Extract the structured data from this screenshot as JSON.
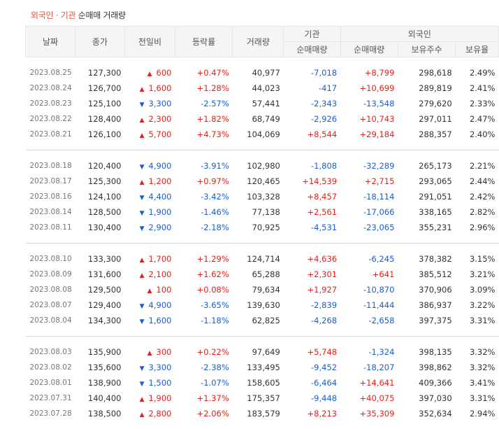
{
  "caption": {
    "part1": "외국인 · 기관",
    "part2": "순매매 거래량"
  },
  "headers": {
    "date": "날짜",
    "close": "종가",
    "change": "전일비",
    "rate": "등락률",
    "volume": "거래량",
    "inst": "기관",
    "inst_net": "순매매량",
    "foreign": "외국인",
    "foreign_net": "순매매량",
    "holding": "보유주수",
    "ratio": "보유율"
  },
  "groups": [
    [
      [
        "2023.08.25",
        "127,300",
        "up",
        "600",
        "+0.47%",
        "40,977",
        "-7,018",
        "+8,799",
        "298,618",
        "2.49%"
      ],
      [
        "2023.08.24",
        "126,700",
        "up",
        "1,600",
        "+1.28%",
        "44,023",
        "-417",
        "+10,699",
        "289,819",
        "2.41%"
      ],
      [
        "2023.08.23",
        "125,100",
        "dn",
        "3,300",
        "-2.57%",
        "57,441",
        "-2,343",
        "-13,548",
        "279,620",
        "2.33%"
      ],
      [
        "2023.08.22",
        "128,400",
        "up",
        "2,300",
        "+1.82%",
        "68,749",
        "-2,926",
        "+10,743",
        "297,011",
        "2.47%"
      ],
      [
        "2023.08.21",
        "126,100",
        "up",
        "5,700",
        "+4.73%",
        "104,069",
        "+8,544",
        "+29,184",
        "288,357",
        "2.40%"
      ]
    ],
    [
      [
        "2023.08.18",
        "120,400",
        "dn",
        "4,900",
        "-3.91%",
        "102,980",
        "-1,808",
        "-32,289",
        "265,173",
        "2.21%"
      ],
      [
        "2023.08.17",
        "125,300",
        "up",
        "1,200",
        "+0.97%",
        "120,465",
        "+14,539",
        "+2,715",
        "293,065",
        "2.44%"
      ],
      [
        "2023.08.16",
        "124,100",
        "dn",
        "4,400",
        "-3.42%",
        "103,328",
        "+8,457",
        "-18,114",
        "291,051",
        "2.42%"
      ],
      [
        "2023.08.14",
        "128,500",
        "dn",
        "1,900",
        "-1.46%",
        "77,138",
        "+2,561",
        "-17,066",
        "338,165",
        "2.82%"
      ],
      [
        "2023.08.11",
        "130,400",
        "dn",
        "2,900",
        "-2.18%",
        "70,925",
        "-4,531",
        "-23,065",
        "355,231",
        "2.96%"
      ]
    ],
    [
      [
        "2023.08.10",
        "133,300",
        "up",
        "1,700",
        "+1.29%",
        "124,714",
        "+4,636",
        "-6,245",
        "378,382",
        "3.15%"
      ],
      [
        "2023.08.09",
        "131,600",
        "up",
        "2,100",
        "+1.62%",
        "65,288",
        "+2,301",
        "+641",
        "385,512",
        "3.21%"
      ],
      [
        "2023.08.08",
        "129,500",
        "up",
        "100",
        "+0.08%",
        "79,634",
        "+1,927",
        "-10,870",
        "370,906",
        "3.09%"
      ],
      [
        "2023.08.07",
        "129,400",
        "dn",
        "4,900",
        "-3.65%",
        "139,630",
        "-2,839",
        "-11,444",
        "386,937",
        "3.22%"
      ],
      [
        "2023.08.04",
        "134,300",
        "dn",
        "1,600",
        "-1.18%",
        "62,825",
        "-4,268",
        "-2,658",
        "397,375",
        "3.31%"
      ]
    ],
    [
      [
        "2023.08.03",
        "135,900",
        "up",
        "300",
        "+0.22%",
        "97,649",
        "+5,748",
        "-1,324",
        "398,135",
        "3.32%"
      ],
      [
        "2023.08.02",
        "135,600",
        "dn",
        "3,300",
        "-2.38%",
        "133,495",
        "-9,452",
        "-18,207",
        "398,862",
        "3.32%"
      ],
      [
        "2023.08.01",
        "138,900",
        "dn",
        "1,500",
        "-1.07%",
        "158,605",
        "-6,464",
        "+14,641",
        "409,366",
        "3.41%"
      ],
      [
        "2023.07.31",
        "140,400",
        "up",
        "1,900",
        "+1.37%",
        "175,357",
        "-9,448",
        "+40,075",
        "397,030",
        "3.31%"
      ],
      [
        "2023.07.28",
        "138,500",
        "up",
        "2,800",
        "+2.06%",
        "183,579",
        "+8,213",
        "+35,309",
        "352,634",
        "2.94%"
      ]
    ]
  ],
  "arrows": {
    "up": "▲",
    "dn": "▼"
  }
}
